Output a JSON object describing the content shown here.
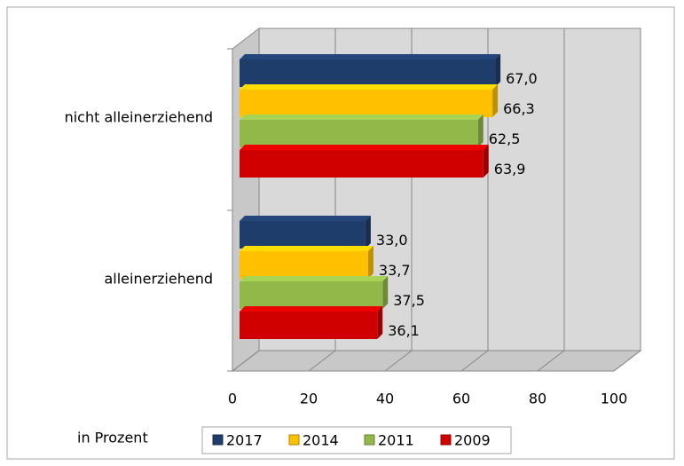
{
  "chart_data": {
    "type": "bar",
    "orientation": "horizontal",
    "three_d": true,
    "x_axis_label": "in Prozent",
    "categories": [
      "nicht alleinerziehend",
      "alleinerziehend"
    ],
    "series": [
      {
        "name": "2017",
        "color": "#1f3d6b",
        "values": [
          67.0,
          33.0
        ],
        "value_labels": [
          "67,0",
          "33,0"
        ]
      },
      {
        "name": "2014",
        "color": "#ffc000",
        "values": [
          66.3,
          33.7
        ],
        "value_labels": [
          "66,3",
          "33,7"
        ]
      },
      {
        "name": "2011",
        "color": "#92b84a",
        "values": [
          62.5,
          37.5
        ],
        "value_labels": [
          "62,5",
          "37,5"
        ]
      },
      {
        "name": "2009",
        "color": "#d00000",
        "values": [
          63.9,
          36.1
        ],
        "value_labels": [
          "63,9",
          "36,1"
        ]
      }
    ],
    "xlim": [
      0,
      100
    ],
    "xticks": [
      0,
      20,
      40,
      60,
      80,
      100
    ],
    "grid": true,
    "legend": "bottom"
  }
}
